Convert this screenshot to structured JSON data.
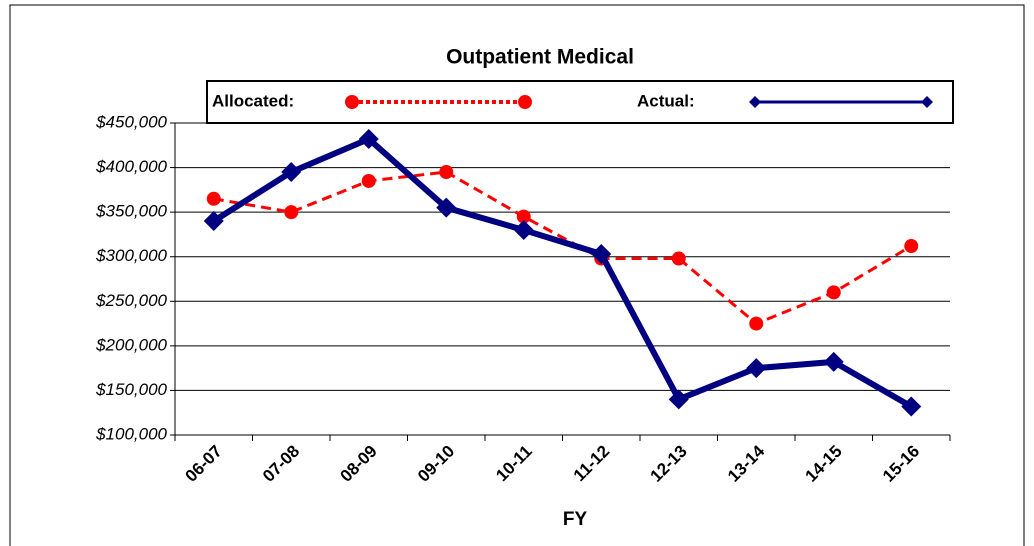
{
  "chart_data": {
    "type": "line",
    "title": "Outpatient Medical",
    "x_label": "FY",
    "categories": [
      "06-07",
      "07-08",
      "08-09",
      "09-10",
      "10-11",
      "11-12",
      "12-13",
      "13-14",
      "14-15",
      "15-16"
    ],
    "series": [
      {
        "name": "Allocated:",
        "color": "#ff0000",
        "values": [
          365000,
          350000,
          385000,
          395000,
          345000,
          298000,
          298000,
          225000,
          260000,
          312000
        ]
      },
      {
        "name": "Actual:",
        "color": "#000080",
        "values": [
          340000,
          395000,
          432000,
          355000,
          330000,
          303000,
          140000,
          175000,
          182000,
          132000
        ]
      }
    ],
    "ylim": [
      100000,
      450000
    ],
    "yticks": [
      {
        "value": 100000,
        "label": "$100,000"
      },
      {
        "value": 150000,
        "label": "$150,000"
      },
      {
        "value": 200000,
        "label": "$200,000"
      },
      {
        "value": 250000,
        "label": "$250,000"
      },
      {
        "value": 300000,
        "label": "$300,000"
      },
      {
        "value": 350000,
        "label": "$350,000"
      },
      {
        "value": 400000,
        "label": "$400,000"
      },
      {
        "value": 450000,
        "label": "$450,000"
      }
    ],
    "grid": true
  }
}
